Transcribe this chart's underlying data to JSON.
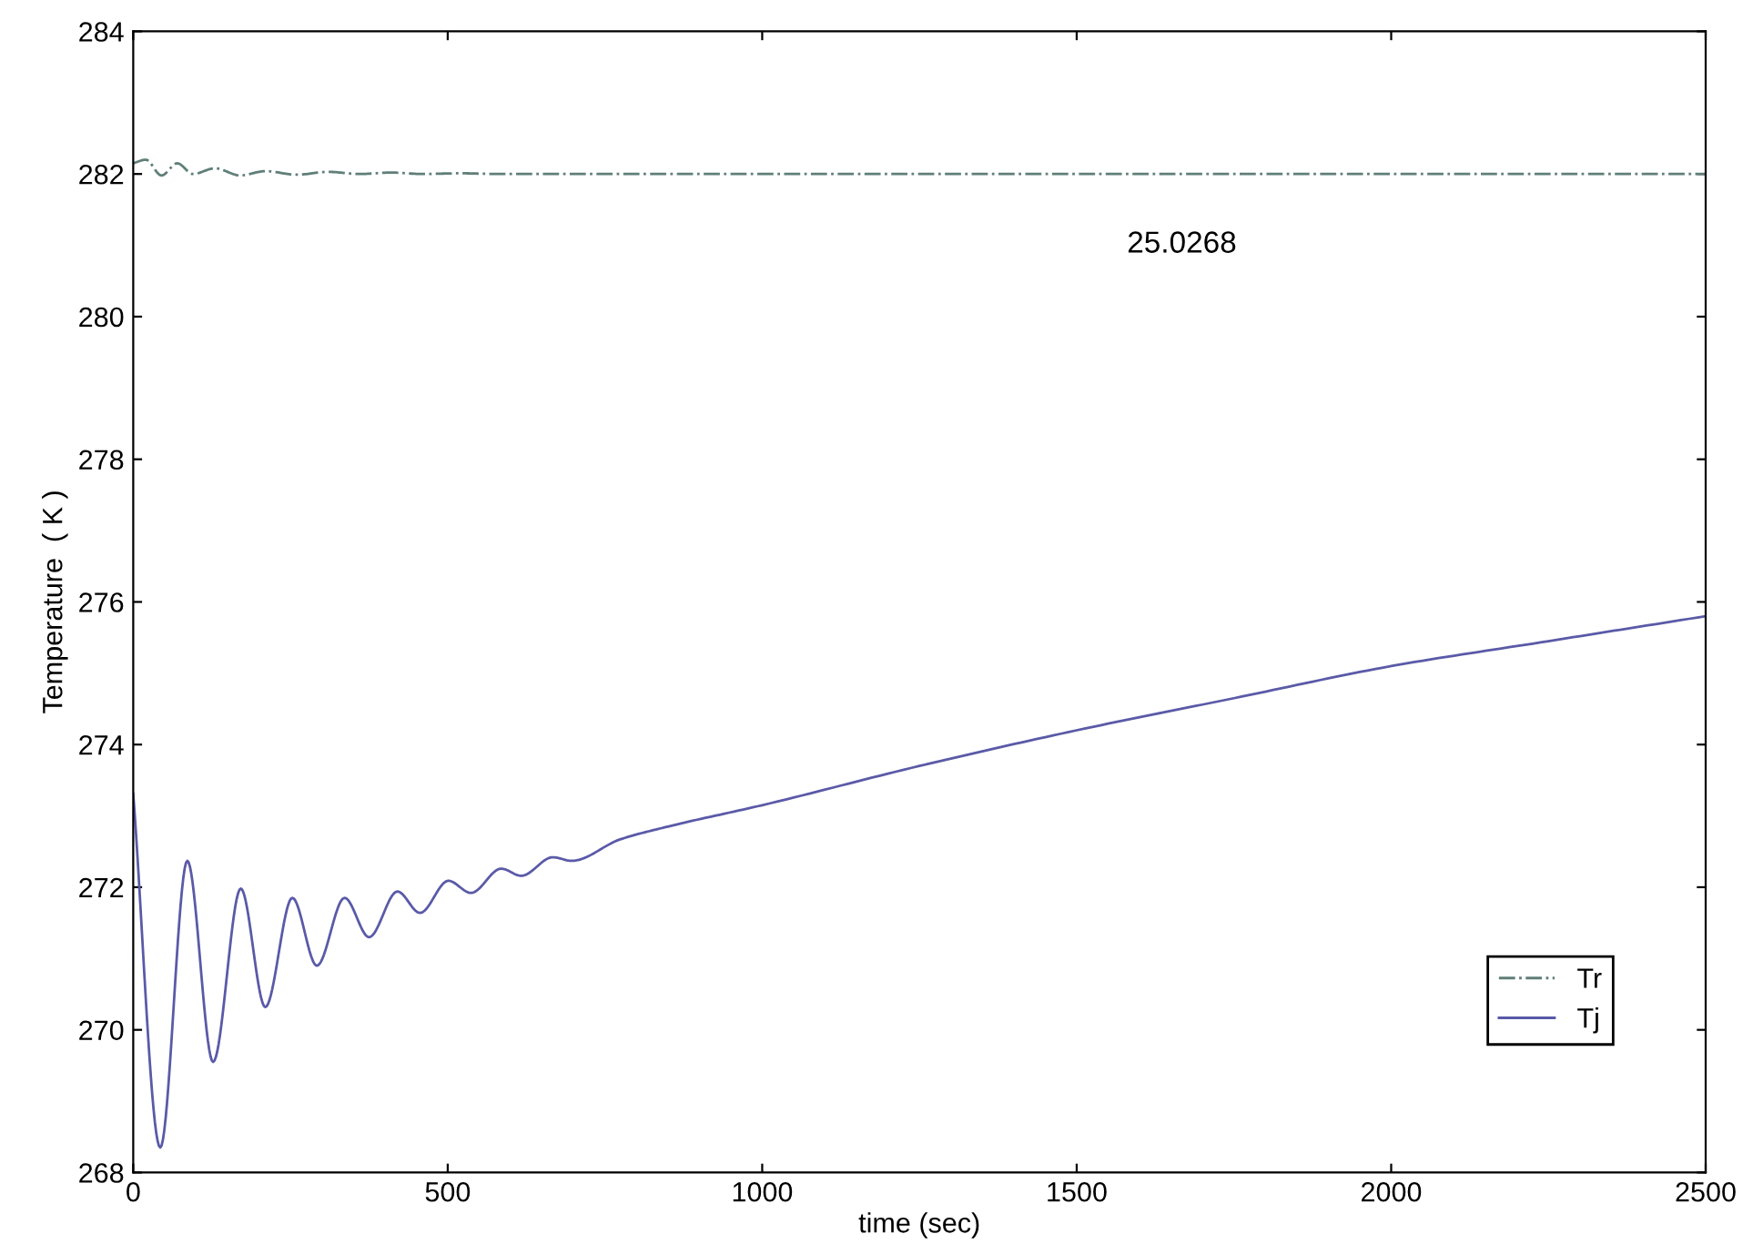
{
  "chart_data": {
    "type": "line",
    "xlabel": "time (sec)",
    "ylabel": "Temperature  ( K )",
    "xlim": [
      0,
      2500
    ],
    "ylim": [
      268,
      284
    ],
    "xticks": [
      0,
      500,
      1000,
      1500,
      2000,
      2500
    ],
    "yticks": [
      268,
      270,
      272,
      274,
      276,
      278,
      280,
      282,
      284
    ],
    "grid": false,
    "legend": "bottom right",
    "annotations": [
      "25.0268"
    ],
    "series": [
      {
        "name": "Tr",
        "color": "#5f7f78",
        "line_style": "dashdot",
        "x": [
          0,
          20,
          45,
          70,
          95,
          130,
          170,
          210,
          260,
          310,
          360,
          410,
          460,
          520,
          580,
          650,
          800,
          1200,
          2500
        ],
        "values": [
          282.15,
          282.2,
          281.98,
          282.15,
          282.0,
          282.08,
          281.98,
          282.04,
          281.99,
          282.03,
          282.0,
          282.02,
          282.0,
          282.01,
          282.0,
          282.0,
          282.0,
          282.0,
          282.0
        ]
      },
      {
        "name": "Tj",
        "color": "#5a5aa8",
        "line_style": "solid",
        "x": [
          0,
          43,
          86,
          127,
          171,
          210,
          253,
          292,
          336,
          375,
          420,
          456,
          501,
          537,
          585,
          617,
          667,
          697,
          774,
          850,
          1000,
          1250,
          1500,
          1750,
          2000,
          2250,
          2500
        ],
        "values": [
          273.31,
          268.35,
          272.37,
          269.55,
          271.98,
          270.32,
          271.85,
          270.9,
          271.85,
          271.3,
          271.94,
          271.64,
          272.09,
          271.92,
          272.26,
          272.16,
          272.42,
          272.37,
          272.67,
          272.85,
          273.15,
          273.7,
          274.2,
          274.65,
          275.1,
          275.45,
          275.8
        ]
      }
    ]
  }
}
